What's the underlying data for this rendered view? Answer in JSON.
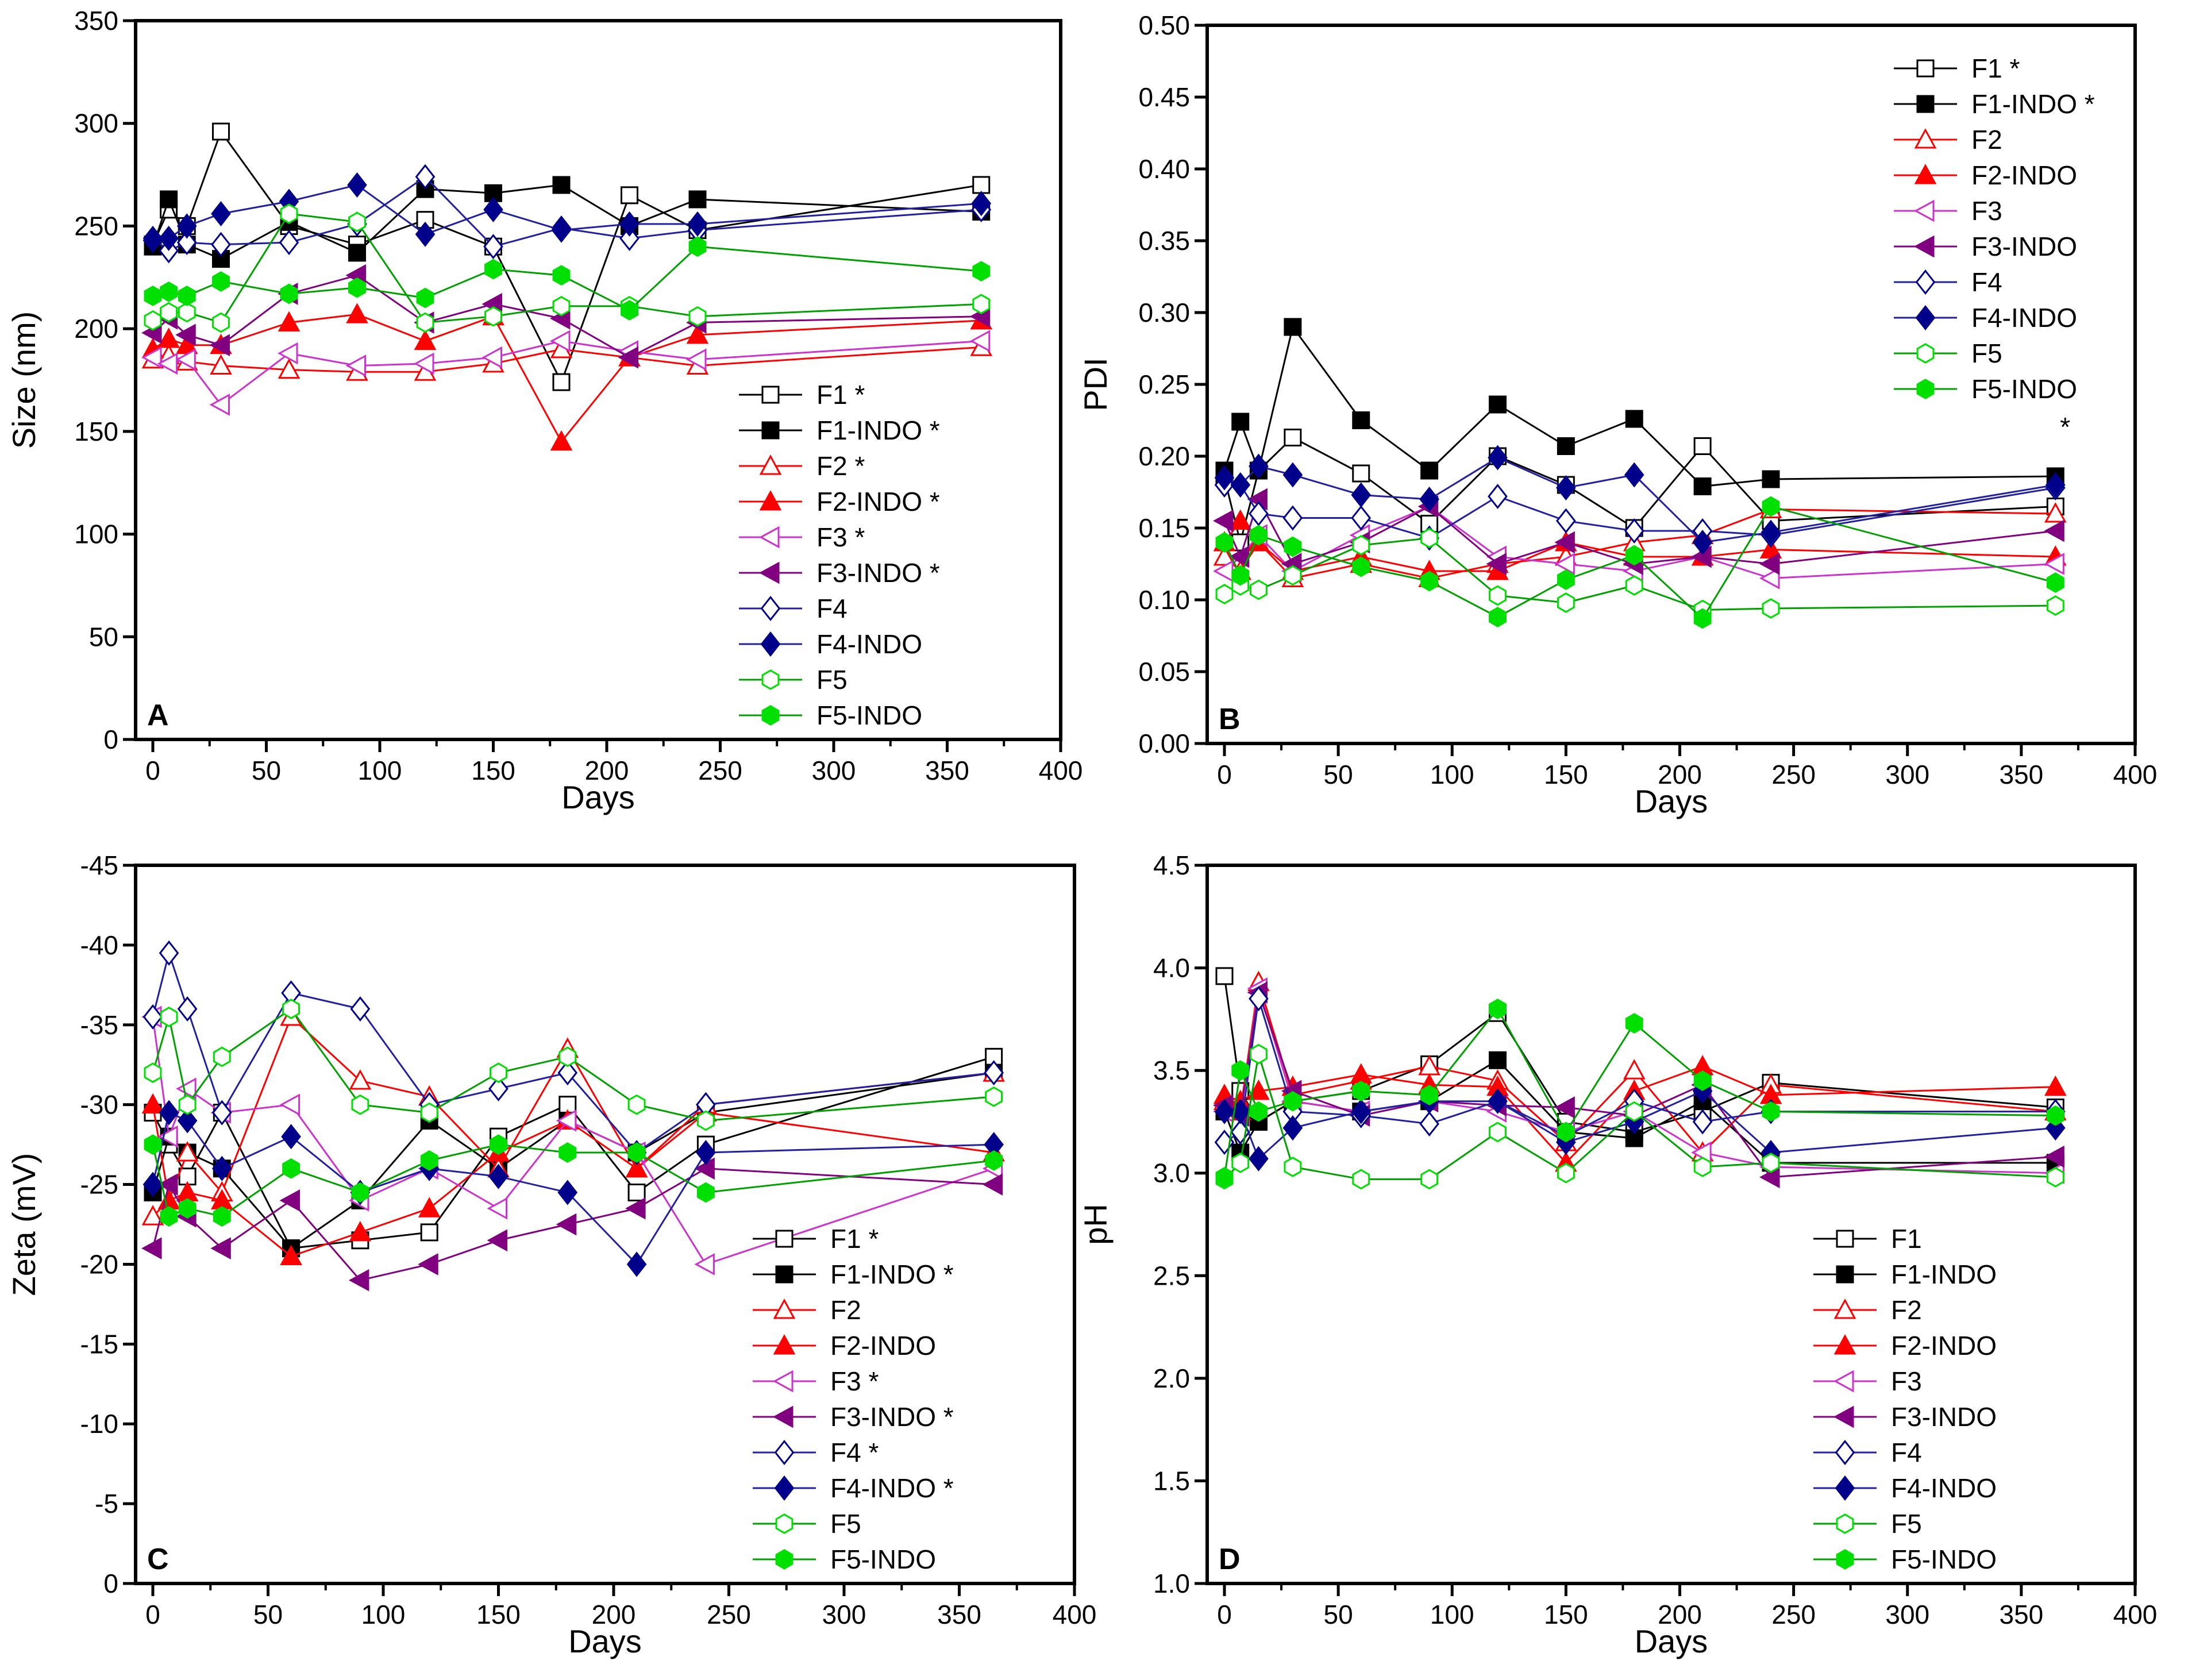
{
  "series_styles": {
    "F1": {
      "color": "#000000",
      "line": "#000000",
      "marker": "square",
      "filled": false
    },
    "F1-INDO": {
      "color": "#000000",
      "line": "#000000",
      "marker": "square",
      "filled": true
    },
    "F2": {
      "color": "#ff0000",
      "line": "#ff0000",
      "marker": "triangle-up",
      "filled": false
    },
    "F2-INDO": {
      "color": "#ff0000",
      "line": "#ff0000",
      "marker": "triangle-up",
      "filled": true
    },
    "F3": {
      "color": "#cc33cc",
      "line": "#cc33cc",
      "marker": "triangle-left",
      "filled": false
    },
    "F3-INDO": {
      "color": "#800080",
      "line": "#800080",
      "marker": "triangle-left",
      "filled": true
    },
    "F4": {
      "color": "#00008b",
      "line": "#2020a0",
      "marker": "diamond",
      "filled": false
    },
    "F4-INDO": {
      "color": "#00008b",
      "line": "#2020a0",
      "marker": "diamond",
      "filled": true
    },
    "F5": {
      "color": "#00e000",
      "line": "#00a000",
      "marker": "hexagon",
      "filled": false
    },
    "F5-INDO": {
      "color": "#00e000",
      "line": "#00a000",
      "marker": "hexagon",
      "filled": true
    }
  },
  "chart_data": [
    {
      "type": "line",
      "panel": "A",
      "xlabel": "Days",
      "ylabel": "Size (nm)",
      "xlim": [
        0,
        400
      ],
      "xticks": [
        0,
        50,
        100,
        150,
        200,
        250,
        300,
        350,
        400
      ],
      "ylim": [
        0,
        350
      ],
      "yticks": [
        0,
        50,
        100,
        150,
        200,
        250,
        300,
        350
      ],
      "legend_position": "bottom-right",
      "x": [
        0,
        7,
        15,
        30,
        60,
        90,
        120,
        150,
        180,
        210,
        240,
        365
      ],
      "series": [
        {
          "name": "F1",
          "label": "F1 *",
          "values": [
            241,
            258,
            250,
            296,
            250,
            241,
            253,
            240,
            174,
            265,
            248,
            270
          ]
        },
        {
          "name": "F1-INDO",
          "label": "F1-INDO *",
          "values": [
            240,
            263,
            241,
            234,
            252,
            237,
            268,
            266,
            270,
            250,
            263,
            257
          ]
        },
        {
          "name": "F2",
          "label": "F2 *",
          "values": [
            185,
            187,
            184,
            182,
            180,
            179,
            179,
            183,
            190,
            186,
            182,
            191
          ]
        },
        {
          "name": "F2-INDO",
          "label": "F2-INDO *",
          "values": [
            190,
            195,
            192,
            192,
            203,
            207,
            194,
            206,
            145,
            186,
            197,
            204
          ]
        },
        {
          "name": "F3",
          "label": "F3 *",
          "values": [
            186,
            183,
            185,
            163,
            188,
            182,
            183,
            186,
            194,
            189,
            185,
            194
          ]
        },
        {
          "name": "F3-INDO",
          "label": "F3-INDO *",
          "values": [
            198,
            205,
            197,
            192,
            217,
            226,
            203,
            212,
            205,
            186,
            203,
            206
          ]
        },
        {
          "name": "F4",
          "label": "F4",
          "values": [
            244,
            238,
            242,
            241,
            242,
            251,
            274,
            240,
            249,
            244,
            248,
            258
          ]
        },
        {
          "name": "F4-INDO",
          "label": "F4-INDO",
          "values": [
            243,
            244,
            250,
            256,
            262,
            270,
            246,
            258,
            248,
            251,
            251,
            261
          ]
        },
        {
          "name": "F5",
          "label": "F5",
          "values": [
            204,
            208,
            208,
            203,
            256,
            252,
            203,
            206,
            211,
            211,
            206,
            212
          ]
        },
        {
          "name": "F5-INDO",
          "label": "F5-INDO",
          "values": [
            216,
            218,
            216,
            223,
            217,
            220,
            215,
            229,
            226,
            209,
            240,
            228
          ]
        }
      ]
    },
    {
      "type": "line",
      "panel": "B",
      "xlabel": "Days",
      "ylabel": "PDI",
      "xlim": [
        0,
        400
      ],
      "xticks": [
        0,
        50,
        100,
        150,
        200,
        250,
        300,
        350,
        400
      ],
      "ylim": [
        0,
        0.5
      ],
      "yticks": [
        "0.00",
        "0.05",
        "0.10",
        "0.15",
        "0.20",
        "0.25",
        "0.30",
        "0.35",
        "0.40",
        "0.45",
        "0.50"
      ],
      "legend_position": "top-right",
      "annotation": "*",
      "x": [
        0,
        7,
        15,
        30,
        60,
        90,
        120,
        150,
        180,
        210,
        240,
        365
      ],
      "series": [
        {
          "name": "F1",
          "label": "F1 *",
          "values": [
            0.185,
            0.14,
            0.19,
            0.213,
            0.188,
            0.153,
            0.2,
            0.18,
            0.15,
            0.207,
            0.155,
            0.165
          ]
        },
        {
          "name": "F1-INDO",
          "label": "F1-INDO *",
          "values": [
            0.19,
            0.224,
            0.19,
            0.29,
            0.225,
            0.19,
            0.236,
            0.207,
            0.226,
            0.179,
            0.184,
            0.186
          ]
        },
        {
          "name": "F2",
          "label": "F2",
          "values": [
            0.13,
            0.12,
            0.14,
            0.115,
            0.125,
            0.115,
            0.125,
            0.13,
            0.14,
            0.145,
            0.163,
            0.16
          ]
        },
        {
          "name": "F2-INDO",
          "label": "F2-INDO",
          "values": [
            0.14,
            0.155,
            0.14,
            0.12,
            0.13,
            0.12,
            0.12,
            0.14,
            0.13,
            0.13,
            0.135,
            0.13
          ]
        },
        {
          "name": "F3",
          "label": "F3",
          "values": [
            0.12,
            0.13,
            0.145,
            0.12,
            0.145,
            0.165,
            0.13,
            0.125,
            0.12,
            0.13,
            0.115,
            0.125
          ]
        },
        {
          "name": "F3-INDO",
          "label": "F3-INDO",
          "values": [
            0.155,
            0.13,
            0.17,
            0.125,
            0.14,
            0.165,
            0.125,
            0.14,
            0.125,
            0.13,
            0.125,
            0.148
          ]
        },
        {
          "name": "F4",
          "label": "F4",
          "values": [
            0.18,
            0.18,
            0.16,
            0.157,
            0.157,
            0.143,
            0.172,
            0.155,
            0.148,
            0.148,
            0.145,
            0.178
          ]
        },
        {
          "name": "F4-INDO",
          "label": "F4-INDO",
          "values": [
            0.185,
            0.18,
            0.193,
            0.187,
            0.173,
            0.17,
            0.199,
            0.178,
            0.187,
            0.14,
            0.147,
            0.18
          ]
        },
        {
          "name": "F5",
          "label": "F5",
          "values": [
            0.104,
            0.11,
            0.107,
            0.117,
            0.138,
            0.143,
            0.103,
            0.098,
            0.11,
            0.093,
            0.094,
            0.096
          ]
        },
        {
          "name": "F5-INDO",
          "label": "F5-INDO",
          "values": [
            0.14,
            0.117,
            0.145,
            0.137,
            0.123,
            0.113,
            0.088,
            0.114,
            0.131,
            0.087,
            0.165,
            0.112
          ]
        }
      ]
    },
    {
      "type": "line",
      "panel": "C",
      "xlabel": "Days",
      "ylabel": "Zeta (mV)",
      "xlim": [
        0,
        400
      ],
      "xticks": [
        0,
        50,
        100,
        150,
        200,
        250,
        300,
        350,
        400
      ],
      "ylim": [
        0,
        -45
      ],
      "yticks": [
        0,
        -5,
        -10,
        -15,
        -20,
        -25,
        -30,
        -35,
        -40,
        -45
      ],
      "legend_position": "bottom-right",
      "x": [
        0,
        7,
        15,
        30,
        60,
        90,
        120,
        150,
        180,
        210,
        240,
        365
      ],
      "series": [
        {
          "name": "F1",
          "label": "F1 *",
          "values": [
            -29.5,
            -27.5,
            -25.5,
            -29.5,
            -21,
            -21.5,
            -22,
            -28,
            -30,
            -24.5,
            -27.5,
            -33
          ]
        },
        {
          "name": "F1-INDO",
          "label": "F1-INDO *",
          "values": [
            -24.5,
            -28,
            -27,
            -26,
            -21,
            -24,
            -29,
            -26,
            -29,
            -27,
            -29.5,
            -32
          ]
        },
        {
          "name": "F2",
          "label": "F2",
          "values": [
            -23,
            -24,
            -27,
            -24.5,
            -35.5,
            -31.5,
            -30.5,
            -26,
            -33.5,
            -26,
            -30,
            -32
          ]
        },
        {
          "name": "F2-INDO",
          "label": "F2-INDO",
          "values": [
            -30,
            -24,
            -24.5,
            -24,
            -20.5,
            -22,
            -23.5,
            -27,
            -29,
            -26,
            -29.5,
            -27
          ]
        },
        {
          "name": "F3",
          "label": "F3 *",
          "values": [
            -35.5,
            -28,
            -31,
            -29.5,
            -30,
            -24,
            -26,
            -23.5,
            -29,
            -27,
            -20,
            -26
          ]
        },
        {
          "name": "F3-INDO",
          "label": "F3-INDO *",
          "values": [
            -21,
            -25,
            -23,
            -21,
            -24,
            -19,
            -20,
            -21.5,
            -22.5,
            -23.5,
            -26,
            -25
          ]
        },
        {
          "name": "F4",
          "label": "F4 *",
          "values": [
            -35.5,
            -39.5,
            -36,
            -29.5,
            -37,
            -36,
            -30,
            -31,
            -32,
            -27,
            -30,
            -32
          ]
        },
        {
          "name": "F4-INDO",
          "label": "F4-INDO *",
          "values": [
            -25,
            -29.5,
            -29,
            -26,
            -28,
            -24.5,
            -26,
            -25.5,
            -24.5,
            -20,
            -27,
            -27.5
          ]
        },
        {
          "name": "F5",
          "label": "F5",
          "values": [
            -32,
            -35.5,
            -30,
            -33,
            -36,
            -30,
            -29.5,
            -32,
            -33,
            -30,
            -29,
            -30.5
          ]
        },
        {
          "name": "F5-INDO",
          "label": "F5-INDO",
          "values": [
            -27.5,
            -23,
            -23.5,
            -23,
            -26,
            -24.5,
            -26.5,
            -27.5,
            -27,
            -27,
            -24.5,
            -26.5
          ]
        }
      ]
    },
    {
      "type": "line",
      "panel": "D",
      "xlabel": "Days",
      "ylabel": "pH",
      "xlim": [
        0,
        400
      ],
      "xticks": [
        0,
        50,
        100,
        150,
        200,
        250,
        300,
        350,
        400
      ],
      "ylim": [
        1.0,
        4.5
      ],
      "yticks": [
        "1.0",
        "1.5",
        "2.0",
        "2.5",
        "3.0",
        "3.5",
        "4.0",
        "4.5"
      ],
      "legend_position": "bottom-right",
      "x": [
        0,
        7,
        15,
        30,
        60,
        90,
        120,
        150,
        180,
        210,
        240,
        365
      ],
      "series": [
        {
          "name": "F1",
          "label": "F1",
          "values": [
            3.96,
            3.4,
            3.25,
            3.35,
            3.4,
            3.53,
            3.78,
            3.25,
            3.2,
            3.3,
            3.44,
            3.32
          ]
        },
        {
          "name": "F1-INDO",
          "label": "F1-INDO",
          "values": [
            3.3,
            3.1,
            3.25,
            3.35,
            3.3,
            3.35,
            3.55,
            3.2,
            3.17,
            3.35,
            3.05,
            3.05
          ]
        },
        {
          "name": "F2",
          "label": "F2",
          "values": [
            3.35,
            3.3,
            3.93,
            3.38,
            3.45,
            3.52,
            3.45,
            3.15,
            3.5,
            3.1,
            3.43,
            3.3
          ]
        },
        {
          "name": "F2-INDO",
          "label": "F2-INDO",
          "values": [
            3.38,
            3.35,
            3.4,
            3.42,
            3.48,
            3.43,
            3.42,
            3.05,
            3.4,
            3.52,
            3.38,
            3.42
          ]
        },
        {
          "name": "F3",
          "label": "F3",
          "values": [
            3.3,
            3.28,
            3.9,
            3.35,
            3.3,
            3.35,
            3.3,
            3.2,
            3.3,
            3.1,
            3.03,
            3.0
          ]
        },
        {
          "name": "F3-INDO",
          "label": "F3-INDO",
          "values": [
            3.33,
            3.28,
            3.88,
            3.4,
            3.28,
            3.35,
            3.33,
            3.32,
            3.28,
            3.43,
            2.98,
            3.08
          ]
        },
        {
          "name": "F4",
          "label": "F4",
          "values": [
            3.15,
            3.2,
            3.85,
            3.3,
            3.28,
            3.24,
            3.35,
            3.18,
            3.35,
            3.25,
            3.3,
            3.3
          ]
        },
        {
          "name": "F4-INDO",
          "label": "F4-INDO",
          "values": [
            3.3,
            3.3,
            3.07,
            3.22,
            3.3,
            3.35,
            3.35,
            3.15,
            3.25,
            3.4,
            3.1,
            3.22
          ]
        },
        {
          "name": "F5",
          "label": "F5",
          "values": [
            2.97,
            3.05,
            3.58,
            3.03,
            2.97,
            2.97,
            3.2,
            3.0,
            3.3,
            3.03,
            3.05,
            2.98
          ]
        },
        {
          "name": "F5-INDO",
          "label": "F5-INDO",
          "values": [
            2.98,
            3.5,
            3.3,
            3.35,
            3.4,
            3.38,
            3.8,
            3.2,
            3.73,
            3.45,
            3.3,
            3.28
          ]
        }
      ]
    }
  ]
}
